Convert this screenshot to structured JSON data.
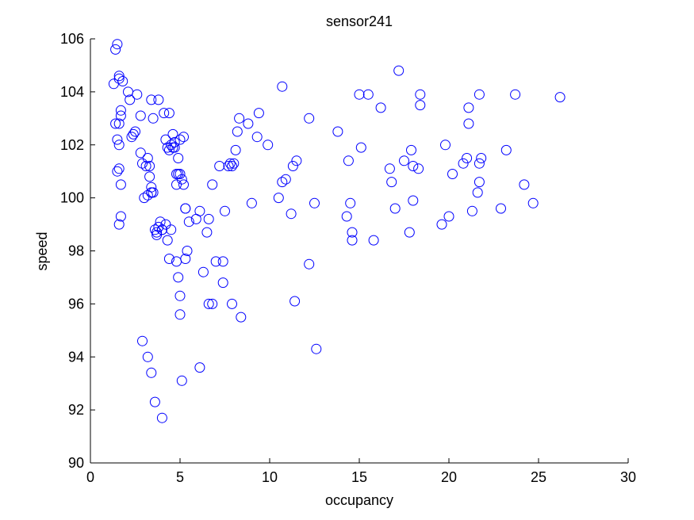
{
  "chart_data": {
    "type": "scatter",
    "title": "sensor241",
    "xlabel": "occupancy",
    "ylabel": "speed",
    "xlim": [
      0,
      30
    ],
    "ylim": [
      90,
      106
    ],
    "xticks": [
      0,
      5,
      10,
      15,
      20,
      25,
      30
    ],
    "yticks": [
      90,
      92,
      94,
      96,
      98,
      100,
      102,
      104,
      106
    ],
    "grid": false,
    "legend": "none",
    "marker": "open-circle",
    "marker_color": "#0000ff",
    "series": [
      {
        "x": [
          1.5,
          1.4,
          1.6,
          1.8,
          1.3,
          1.7,
          1.7,
          1.6,
          1.4,
          1.5,
          1.6,
          1.6,
          1.5,
          1.7,
          1.7,
          1.6,
          1.6,
          2.1,
          2.2,
          2.3,
          2.4,
          2.5,
          2.6,
          2.8,
          2.8,
          2.9,
          3.1,
          3.2,
          3.3,
          3.3,
          3.4,
          3.4,
          3.4,
          3.5,
          3.5,
          3.6,
          3.7,
          3.8,
          3.9,
          4.0,
          4.1,
          4.2,
          4.2,
          4.3,
          4.4,
          4.4,
          4.5,
          4.6,
          4.6,
          4.7,
          4.7,
          4.8,
          4.8,
          4.9,
          4.9,
          5.0,
          5.0,
          5.1,
          5.2,
          5.2,
          5.3,
          5.3,
          5.4,
          2.9,
          3.2,
          3.4,
          3.6,
          4.0,
          5.1,
          6.1,
          3.0,
          3.2,
          3.4,
          3.7,
          3.8,
          4.0,
          4.3,
          4.4,
          4.5,
          4.8,
          4.9,
          5.0,
          5.0,
          5.3,
          5.5,
          5.9,
          6.1,
          6.3,
          6.5,
          6.6,
          6.6,
          6.8,
          7.0,
          7.4,
          7.4,
          7.5,
          7.7,
          7.8,
          7.9,
          6.8,
          7.2,
          7.9,
          8.0,
          8.1,
          8.2,
          8.3,
          8.4,
          8.8,
          9.0,
          9.3,
          9.4,
          9.9,
          10.5,
          10.7,
          10.9,
          11.2,
          11.3,
          11.5,
          11.4,
          12.2,
          12.2,
          12.5,
          12.6,
          10.7,
          13.8,
          14.3,
          14.4,
          14.6,
          14.6,
          14.5,
          15.0,
          15.1,
          15.5,
          15.8,
          16.2,
          16.7,
          16.8,
          17.0,
          17.2,
          17.5,
          17.8,
          17.9,
          18.0,
          18.0,
          18.3,
          18.4,
          18.4,
          19.6,
          19.8,
          20.0,
          20.2,
          20.8,
          21.0,
          21.1,
          21.1,
          21.3,
          21.6,
          21.7,
          21.7,
          21.8,
          21.7,
          22.9,
          23.2,
          23.7,
          24.2,
          24.7,
          26.2
        ],
        "y": [
          105.8,
          105.6,
          104.5,
          104.4,
          104.3,
          103.3,
          103.1,
          102.8,
          102.8,
          102.2,
          102.0,
          101.1,
          101.0,
          100.5,
          99.3,
          99.0,
          104.6,
          104.0,
          103.7,
          102.3,
          102.4,
          102.5,
          103.9,
          103.1,
          101.7,
          101.3,
          101.2,
          101.5,
          101.2,
          100.8,
          100.4,
          100.2,
          103.7,
          103.0,
          100.2,
          98.8,
          98.6,
          103.7,
          99.1,
          98.8,
          103.2,
          102.2,
          99.0,
          101.9,
          103.2,
          101.8,
          102.0,
          102.4,
          101.9,
          102.1,
          101.9,
          100.9,
          100.5,
          101.5,
          100.9,
          102.2,
          100.9,
          100.7,
          102.3,
          100.5,
          97.7,
          99.6,
          98.0,
          94.6,
          94.0,
          93.4,
          92.3,
          91.7,
          93.1,
          93.6,
          100.0,
          100.1,
          100.2,
          98.7,
          98.9,
          98.8,
          98.4,
          97.7,
          98.8,
          97.6,
          97.0,
          96.3,
          95.6,
          99.6,
          99.1,
          99.2,
          99.5,
          97.2,
          98.7,
          99.2,
          96.0,
          100.5,
          97.6,
          97.6,
          96.8,
          99.5,
          101.2,
          101.3,
          96.0,
          96.0,
          101.2,
          101.2,
          101.3,
          101.8,
          102.5,
          103.0,
          95.5,
          102.8,
          99.8,
          102.3,
          103.2,
          102.0,
          100.0,
          100.6,
          100.7,
          99.4,
          101.2,
          101.4,
          96.1,
          97.5,
          103.0,
          99.8,
          94.3,
          104.2,
          102.5,
          99.3,
          101.4,
          98.4,
          98.7,
          99.8,
          103.9,
          101.9,
          103.9,
          98.4,
          103.4,
          101.1,
          100.6,
          99.6,
          104.8,
          101.4,
          98.7,
          101.8,
          101.2,
          99.9,
          101.1,
          103.9,
          103.5,
          99.0,
          102.0,
          99.3,
          100.9,
          101.3,
          101.5,
          103.4,
          102.8,
          99.5,
          100.2,
          101.3,
          103.9,
          101.5,
          100.6,
          99.6,
          101.8,
          103.9,
          100.5,
          99.8,
          103.8
        ]
      }
    ]
  }
}
